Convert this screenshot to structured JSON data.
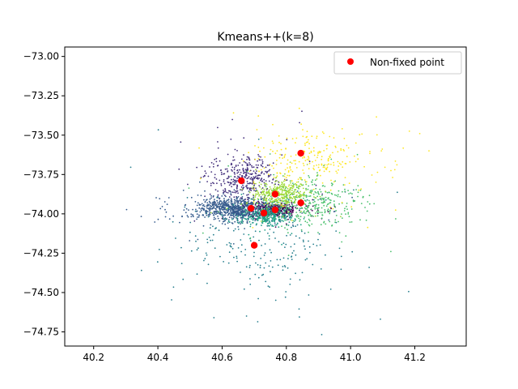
{
  "chart_data": {
    "type": "scatter",
    "title": "Kmeans++(k=8)",
    "xlabel": "",
    "ylabel": "",
    "xlim": [
      40.11,
      41.36
    ],
    "ylim": [
      -74.84,
      -72.94
    ],
    "xticks": [
      40.2,
      40.4,
      40.6,
      40.8,
      41.0,
      41.2
    ],
    "xtick_labels": [
      "40.2",
      "40.4",
      "40.6",
      "40.8",
      "41.0",
      "41.2"
    ],
    "yticks": [
      -73.0,
      -73.25,
      -73.5,
      -73.75,
      -74.0,
      -74.25,
      -74.5,
      -74.75
    ],
    "ytick_labels": [
      "−73.00",
      "−73.25",
      "−73.50",
      "−73.75",
      "−74.00",
      "−74.25",
      "−74.50",
      "−74.75"
    ],
    "grid": false,
    "legend": {
      "position": "top-right",
      "entries": [
        "Non-fixed point"
      ]
    },
    "clusters": [
      {
        "color": "#440154",
        "center": [
          40.765,
          -73.975
        ],
        "spread": [
          0.035,
          0.02
        ],
        "count": 400
      },
      {
        "color": "#46327e",
        "center": [
          40.67,
          -73.77
        ],
        "spread": [
          0.05,
          0.07
        ],
        "count": 380
      },
      {
        "color": "#365c8d",
        "center": [
          40.64,
          -73.97
        ],
        "spread": [
          0.06,
          0.035
        ],
        "count": 800
      },
      {
        "color": "#277f8e",
        "center": [
          40.72,
          -74.22
        ],
        "spread": [
          0.12,
          0.16
        ],
        "count": 220
      },
      {
        "color": "#1fa187",
        "center": [
          40.74,
          -74.01
        ],
        "spread": [
          0.04,
          0.03
        ],
        "count": 300
      },
      {
        "color": "#4ac16d",
        "center": [
          40.88,
          -73.93
        ],
        "spread": [
          0.07,
          0.07
        ],
        "count": 350
      },
      {
        "color": "#a0da39",
        "center": [
          40.78,
          -73.87
        ],
        "spread": [
          0.04,
          0.04
        ],
        "count": 350
      },
      {
        "color": "#fde725",
        "center": [
          40.88,
          -73.66
        ],
        "spread": [
          0.09,
          0.09
        ],
        "count": 260
      }
    ],
    "series": [
      {
        "name": "Non-fixed point",
        "color": "#ff0000",
        "points": [
          [
            40.66,
            -73.79
          ],
          [
            40.69,
            -73.965
          ],
          [
            40.73,
            -73.995
          ],
          [
            40.765,
            -73.875
          ],
          [
            40.765,
            -73.975
          ],
          [
            40.845,
            -73.615
          ],
          [
            40.845,
            -73.93
          ],
          [
            40.7,
            -74.2
          ]
        ]
      }
    ]
  }
}
